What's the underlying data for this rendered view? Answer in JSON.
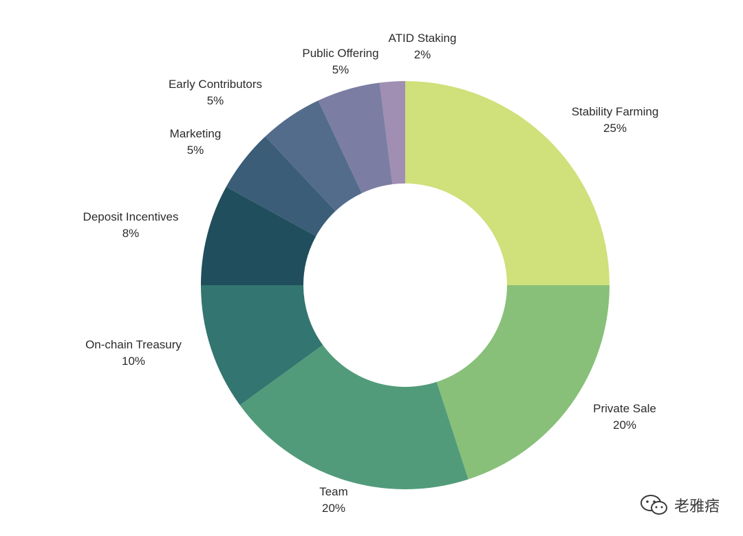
{
  "chart_data": {
    "type": "pie",
    "style": "donut",
    "title": "",
    "slices": [
      {
        "label": "Stability Farming",
        "value": 25,
        "display": "25%",
        "color": "#d0e07a"
      },
      {
        "label": "Private Sale",
        "value": 20,
        "display": "20%",
        "color": "#88c079"
      },
      {
        "label": "Team",
        "value": 20,
        "display": "20%",
        "color": "#529b7a"
      },
      {
        "label": "On-chain Treasury",
        "value": 10,
        "display": "10%",
        "color": "#337570"
      },
      {
        "label": "Deposit Incentives",
        "value": 8,
        "display": "8%",
        "color": "#204e5c"
      },
      {
        "label": "Marketing",
        "value": 5,
        "display": "5%",
        "color": "#3b5d78"
      },
      {
        "label": "Early Contributors",
        "value": 5,
        "display": "5%",
        "color": "#546c8c"
      },
      {
        "label": "Public Offering",
        "value": 5,
        "display": "5%",
        "color": "#7b7ea2"
      },
      {
        "label": "ATID Staking",
        "value": 2,
        "display": "2%",
        "color": "#a08fb2"
      }
    ]
  },
  "watermark": {
    "text": "老雅痞",
    "icon": "wechat-icon"
  }
}
